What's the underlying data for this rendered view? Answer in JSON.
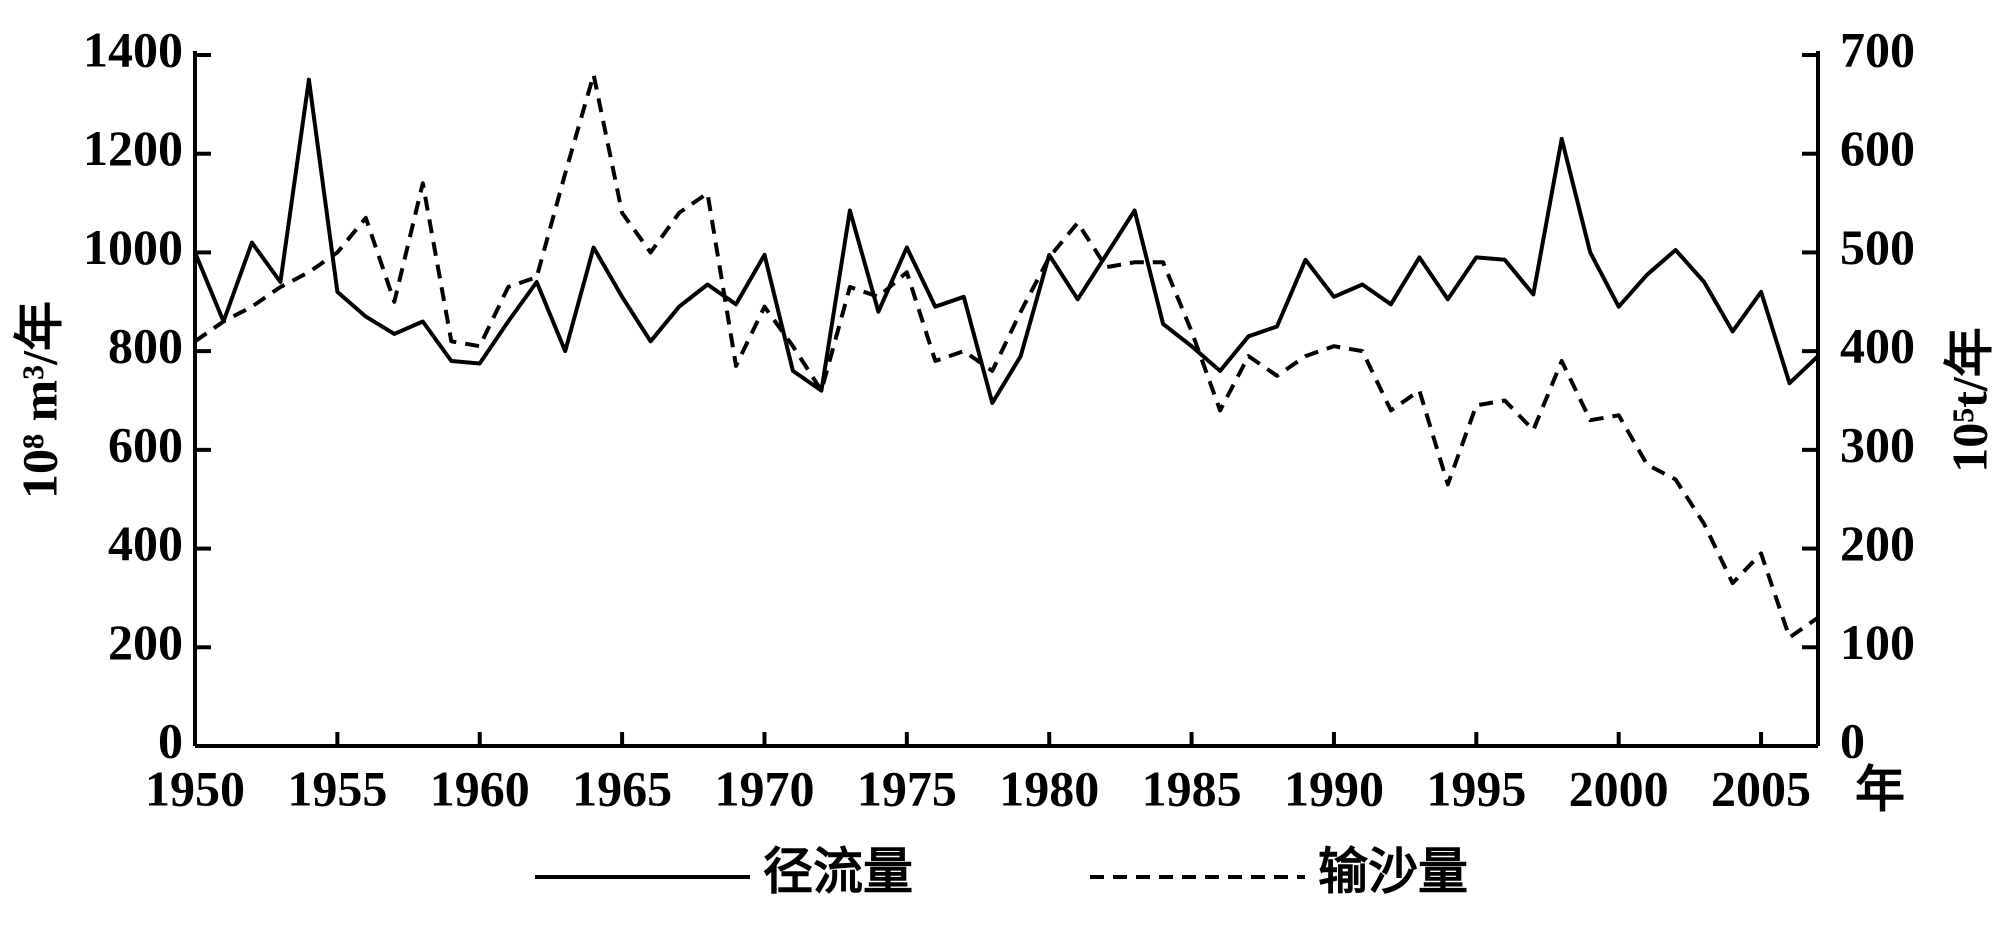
{
  "chart_data": {
    "type": "line",
    "ylabel": "10⁸ m³/年",
    "y2label": "10⁵t/年",
    "xlabel": "年",
    "x": [
      1950,
      1951,
      1952,
      1953,
      1954,
      1955,
      1956,
      1957,
      1958,
      1959,
      1960,
      1961,
      1962,
      1963,
      1964,
      1965,
      1966,
      1967,
      1968,
      1969,
      1970,
      1971,
      1972,
      1973,
      1974,
      1975,
      1976,
      1977,
      1978,
      1979,
      1980,
      1981,
      1982,
      1983,
      1984,
      1985,
      1986,
      1987,
      1988,
      1989,
      1990,
      1991,
      1992,
      1993,
      1994,
      1995,
      1996,
      1997,
      1998,
      1999,
      2000,
      2001,
      2002,
      2003,
      2004,
      2005,
      2006,
      2007
    ],
    "series": [
      {
        "name": "径流量",
        "color": "#000000",
        "linestyle": "solid",
        "values": [
          1000,
          860,
          1020,
          940,
          1350,
          920,
          870,
          835,
          860,
          780,
          775,
          860,
          940,
          800,
          1010,
          910,
          820,
          890,
          935,
          895,
          995,
          760,
          720,
          1085,
          880,
          1010,
          890,
          910,
          695,
          790,
          995,
          905,
          995,
          1085,
          855,
          810,
          760,
          830,
          850,
          985,
          910,
          935,
          895,
          990,
          905,
          990,
          985,
          915,
          1230,
          1000,
          890,
          955,
          1005,
          940,
          840,
          920,
          735,
          790
        ]
      },
      {
        "name": "输沙量",
        "color": "#000000",
        "linestyle": "dashed",
        "axis": "y2",
        "values": [
          410,
          430,
          445,
          465,
          480,
          500,
          535,
          450,
          570,
          410,
          405,
          465,
          475,
          580,
          680,
          540,
          500,
          540,
          560,
          385,
          445,
          405,
          360,
          465,
          455,
          480,
          390,
          400,
          380,
          440,
          495,
          530,
          485,
          490,
          490,
          420,
          340,
          395,
          375,
          395,
          405,
          400,
          340,
          360,
          265,
          345,
          350,
          320,
          390,
          330,
          335,
          285,
          270,
          225,
          165,
          195,
          110,
          130
        ]
      }
    ],
    "xlim": [
      1950,
      2007
    ],
    "xticks": [
      1950,
      1955,
      1960,
      1965,
      1970,
      1975,
      1980,
      1985,
      1990,
      1995,
      2000,
      2005
    ],
    "ylim": [
      0,
      1400
    ],
    "yticks": [
      0,
      200,
      400,
      600,
      800,
      1000,
      1200,
      1400
    ],
    "y2lim": [
      0,
      700
    ],
    "y2ticks": [
      0,
      100,
      200,
      300,
      400,
      500,
      600,
      700
    ]
  }
}
